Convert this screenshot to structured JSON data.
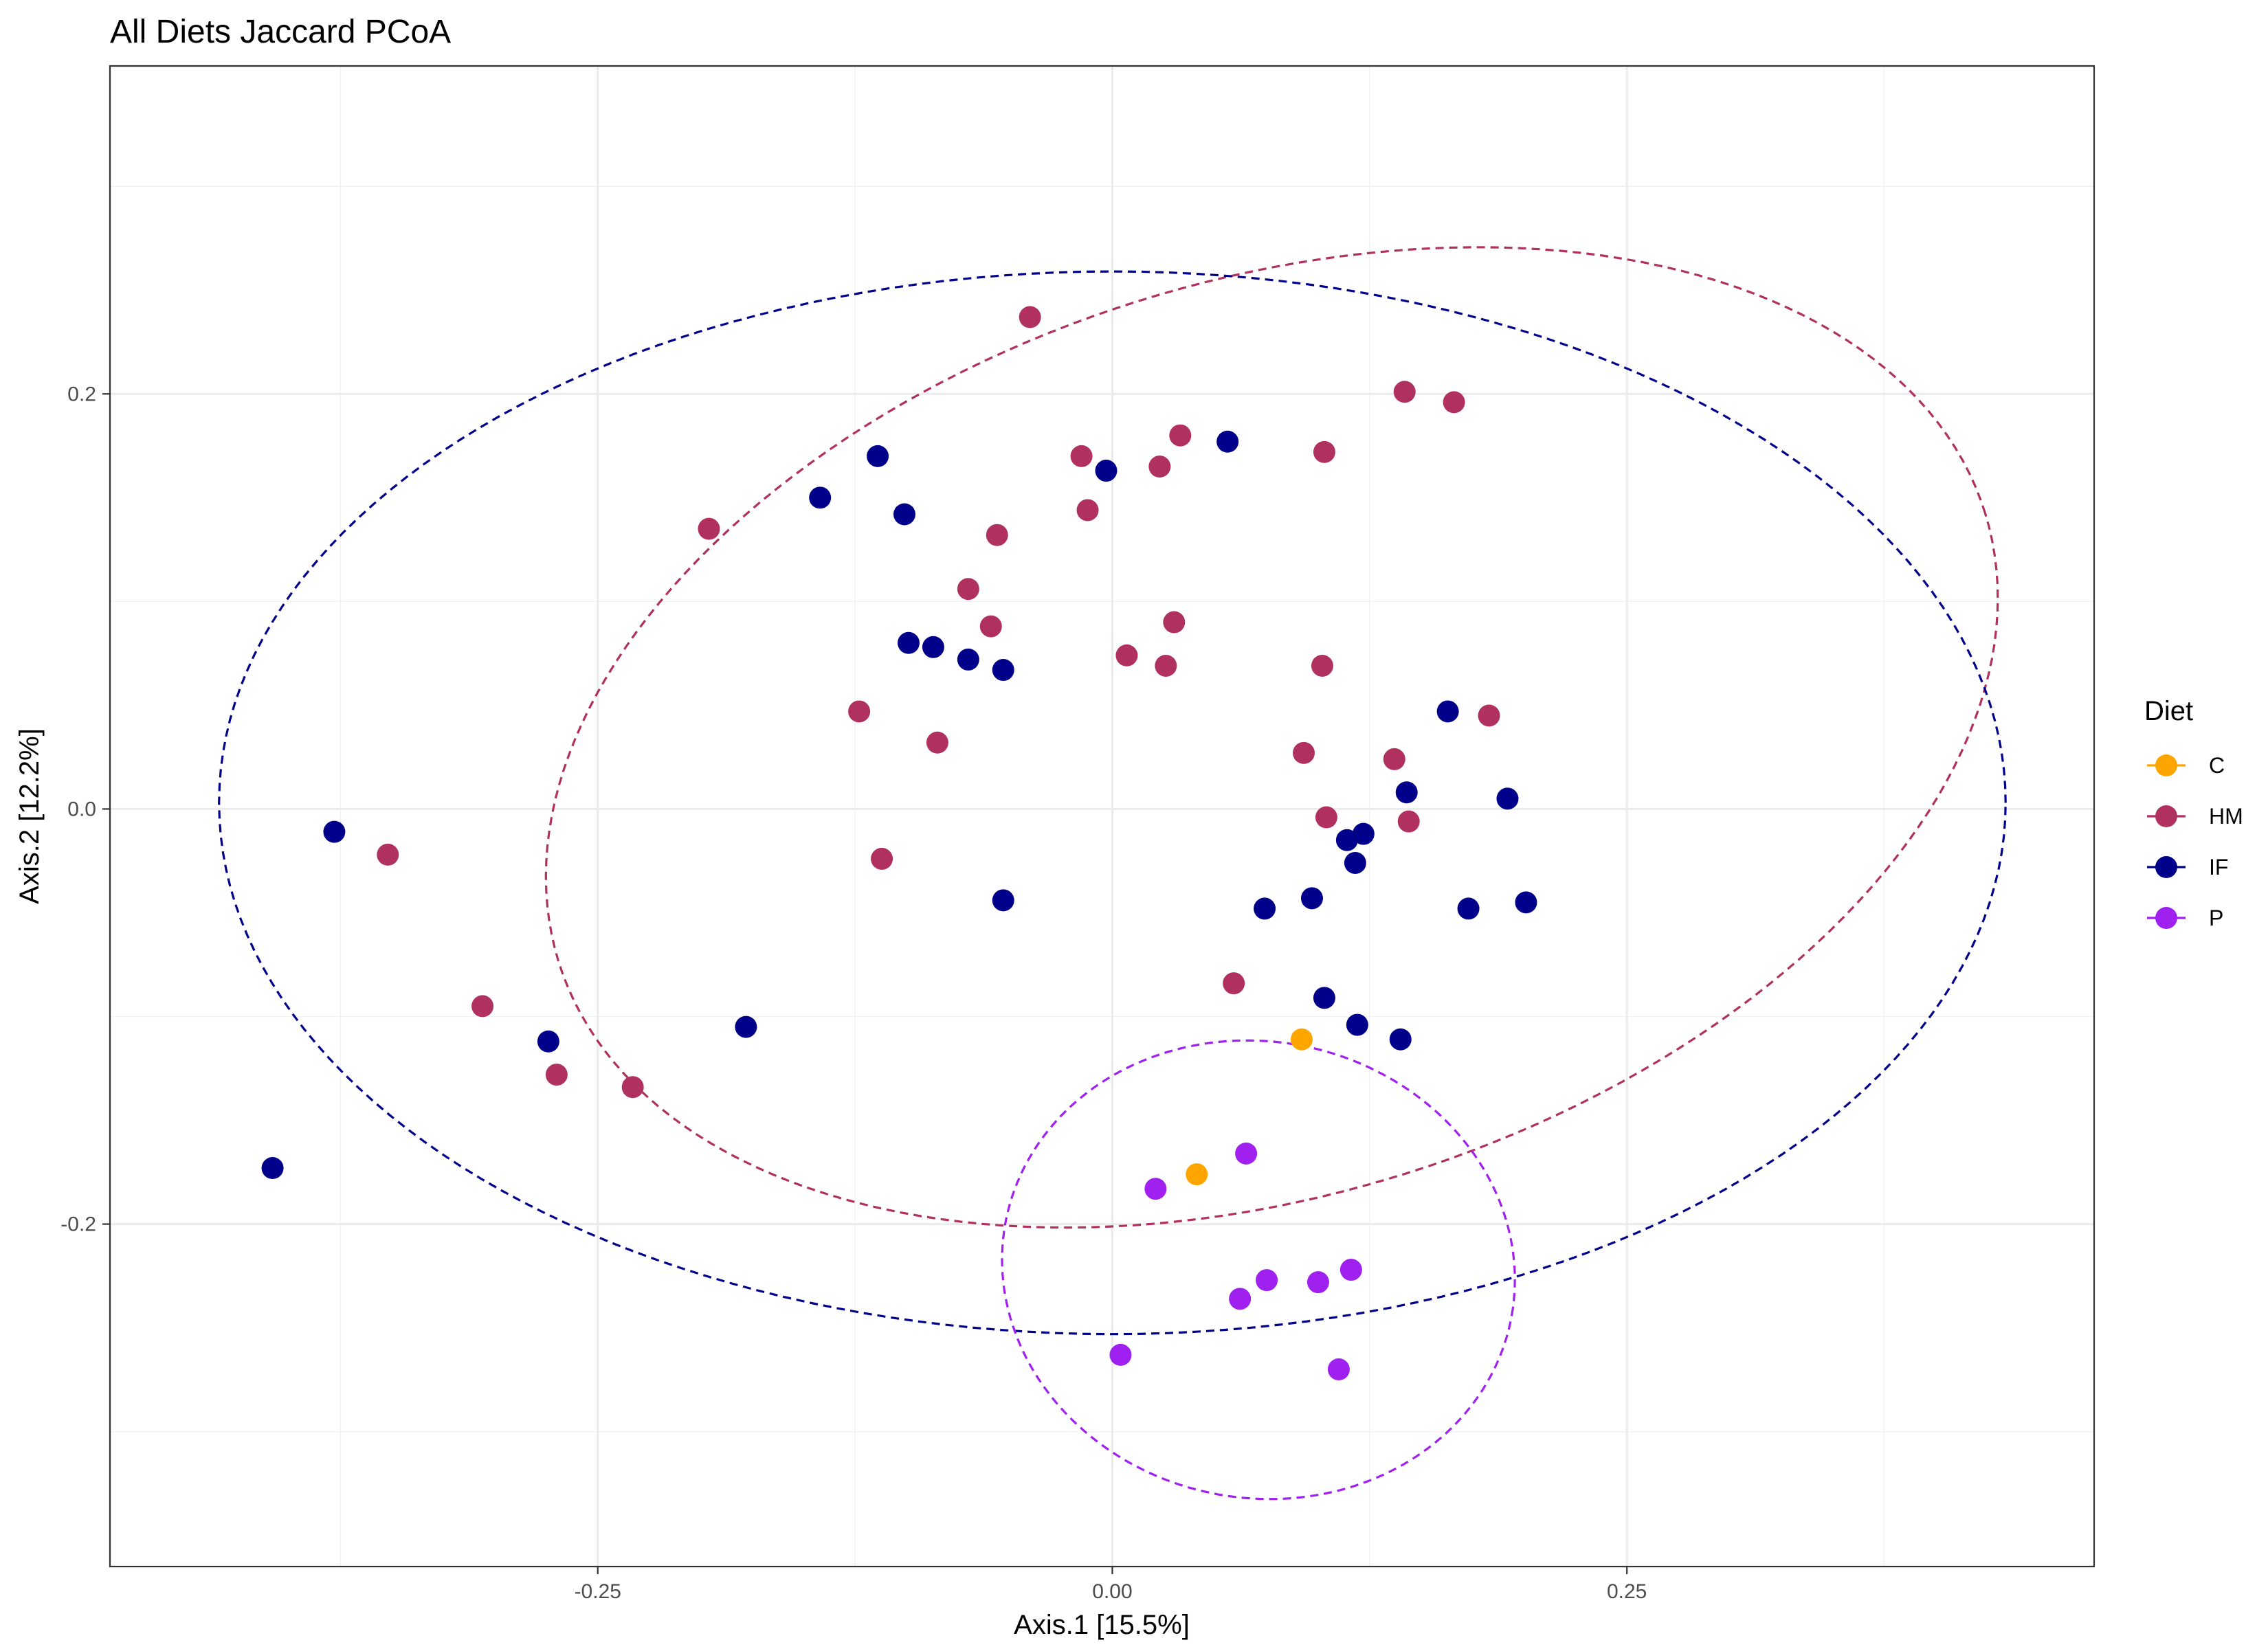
{
  "chart_data": {
    "type": "scatter",
    "title": "All Diets Jaccard PCoA",
    "xlabel": "Axis.1   [15.5%]",
    "ylabel": "Axis.2   [12.2%]",
    "xlim": [
      -0.487,
      0.477
    ],
    "ylim": [
      -0.365,
      0.358
    ],
    "x_ticks": [
      -0.25,
      0.0,
      0.25
    ],
    "x_tick_labels": [
      "-0.25",
      "0.00",
      "0.25"
    ],
    "y_ticks": [
      -0.2,
      0.0,
      0.2
    ],
    "y_tick_labels": [
      "-0.2",
      "0.0",
      "0.2"
    ],
    "grid": true,
    "legend": {
      "title": "Diet",
      "position": "right"
    },
    "ellipse_style": "dashed",
    "series": [
      {
        "name": "C",
        "color": "#FFA500",
        "points": [
          [
            0.092,
            -0.111
          ],
          [
            0.041,
            -0.176
          ]
        ],
        "ellipse": null
      },
      {
        "name": "HM",
        "color": "#B03060",
        "points": [
          [
            -0.04,
            0.237
          ],
          [
            0.142,
            0.201
          ],
          [
            0.166,
            0.196
          ],
          [
            0.033,
            0.18
          ],
          [
            0.103,
            0.172
          ],
          [
            -0.015,
            0.17
          ],
          [
            0.023,
            0.165
          ],
          [
            -0.012,
            0.144
          ],
          [
            -0.196,
            0.135
          ],
          [
            -0.056,
            0.132
          ],
          [
            -0.07,
            0.106
          ],
          [
            -0.059,
            0.088
          ],
          [
            0.03,
            0.09
          ],
          [
            0.007,
            0.074
          ],
          [
            0.026,
            0.069
          ],
          [
            0.102,
            0.069
          ],
          [
            -0.123,
            0.047
          ],
          [
            0.183,
            0.045
          ],
          [
            -0.085,
            0.032
          ],
          [
            0.093,
            0.027
          ],
          [
            0.137,
            0.024
          ],
          [
            0.104,
            -0.004
          ],
          [
            0.144,
            -0.006
          ],
          [
            -0.352,
            -0.022
          ],
          [
            -0.112,
            -0.024
          ],
          [
            0.059,
            -0.084
          ],
          [
            -0.306,
            -0.095
          ],
          [
            -0.27,
            -0.128
          ],
          [
            -0.233,
            -0.134
          ]
        ],
        "ellipse": {
          "cx": 0.0775,
          "cy": 0.0345,
          "rx": 0.363,
          "ry": 0.22,
          "angle": 17.3
        }
      },
      {
        "name": "IF",
        "color": "#00008B",
        "points": [
          [
            0.056,
            0.177
          ],
          [
            -0.114,
            0.17
          ],
          [
            -0.003,
            0.163
          ],
          [
            -0.142,
            0.15
          ],
          [
            -0.101,
            0.142
          ],
          [
            -0.099,
            0.08
          ],
          [
            -0.087,
            0.078
          ],
          [
            -0.07,
            0.072
          ],
          [
            -0.053,
            0.067
          ],
          [
            0.163,
            0.047
          ],
          [
            0.143,
            0.008
          ],
          [
            0.192,
            0.005
          ],
          [
            0.122,
            -0.012
          ],
          [
            0.114,
            -0.015
          ],
          [
            0.118,
            -0.026
          ],
          [
            -0.378,
            -0.011
          ],
          [
            -0.053,
            -0.044
          ],
          [
            0.097,
            -0.043
          ],
          [
            0.074,
            -0.048
          ],
          [
            0.173,
            -0.048
          ],
          [
            0.201,
            -0.045
          ],
          [
            0.103,
            -0.091
          ],
          [
            0.119,
            -0.104
          ],
          [
            0.14,
            -0.111
          ],
          [
            -0.178,
            -0.105
          ],
          [
            -0.274,
            -0.112
          ],
          [
            -0.408,
            -0.173
          ]
        ],
        "ellipse": {
          "cx": 0.0,
          "cy": 0.003,
          "rx": 0.434,
          "ry": 0.256,
          "angle": 0
        }
      },
      {
        "name": "P",
        "color": "#A020F0",
        "points": [
          [
            0.065,
            -0.166
          ],
          [
            0.021,
            -0.183
          ],
          [
            0.116,
            -0.222
          ],
          [
            0.075,
            -0.227
          ],
          [
            0.1,
            -0.228
          ],
          [
            0.062,
            -0.236
          ],
          [
            0.004,
            -0.263
          ],
          [
            0.11,
            -0.27
          ]
        ],
        "ellipse": {
          "cx": 0.071,
          "cy": -0.222,
          "rx": 0.125,
          "ry": 0.11,
          "angle": -10
        }
      }
    ]
  }
}
